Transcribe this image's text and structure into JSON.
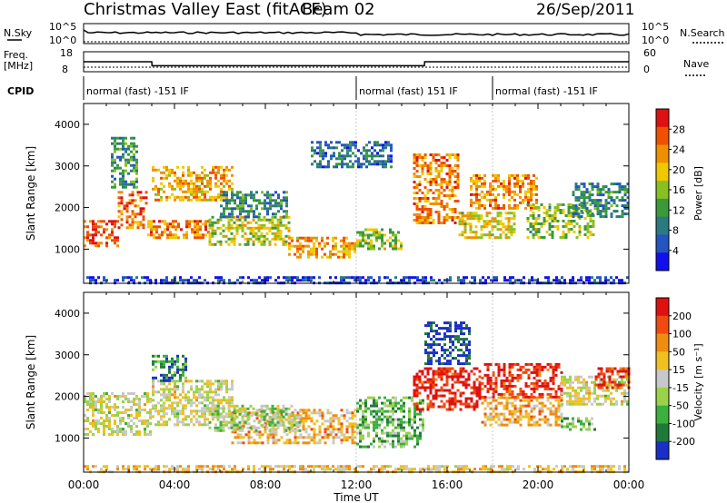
{
  "header": {
    "title": "Christmas Valley East (fitACF)",
    "beam": "Beam 02",
    "date": "26/Sep/2011"
  },
  "status_panel": {
    "nsky_label": "N.Sky",
    "nsky_ticks": [
      "10^5",
      "10^0"
    ],
    "nsearch_label": "N.Search",
    "nsearch_ticks": [
      "10^5",
      "10^0"
    ],
    "freq_label_line1": "Freq.",
    "freq_label_line2": "[MHz]",
    "freq_ticks": [
      "18",
      "8"
    ],
    "nave_label": "Nave",
    "nave_ticks": [
      "60",
      "0"
    ],
    "cpid_label": "CPID",
    "cpid_segments": [
      {
        "text": "normal (fast) -151 IF",
        "start_h": 0,
        "end_h": 12
      },
      {
        "text": "normal (fast) 151 IF",
        "start_h": 12,
        "end_h": 18
      },
      {
        "text": "normal (fast) -151 IF",
        "start_h": 18,
        "end_h": 24
      }
    ],
    "freq_series": [
      {
        "h": 0,
        "mhz": 13
      },
      {
        "h": 3,
        "mhz": 13
      },
      {
        "h": 3.01,
        "mhz": 11
      },
      {
        "h": 15,
        "mhz": 11
      },
      {
        "h": 15.01,
        "mhz": 13
      },
      {
        "h": 24,
        "mhz": 13
      }
    ]
  },
  "chart_data": [
    {
      "type": "heatmap",
      "name": "power",
      "ylabel": "Slant Range [km]",
      "xlabel": "Time UT",
      "x_ticks": [
        "00:00",
        "04:00",
        "08:00",
        "12:00",
        "16:00",
        "20:00",
        "00:00"
      ],
      "xlim_hours": [
        0,
        24
      ],
      "y_ticks": [
        "1000",
        "2000",
        "3000",
        "4000"
      ],
      "ylim_km": [
        180,
        4500
      ],
      "colorbar": {
        "label": "Power [dB]",
        "ticks": [
          "4",
          "8",
          "12",
          "16",
          "20",
          "24",
          "28"
        ],
        "range": [
          0,
          30
        ],
        "colors": [
          "#1010ee",
          "#2255c0",
          "#2a7a80",
          "#3a9a3a",
          "#88c020",
          "#f0c800",
          "#f09000",
          "#f05000",
          "#e01010"
        ]
      },
      "regions": [
        {
          "t0": 0.0,
          "t1": 1.5,
          "r0": 1050,
          "r1": 1700,
          "level": 0.85
        },
        {
          "t0": 1.5,
          "t1": 2.8,
          "r0": 1500,
          "r1": 2400,
          "level": 0.8
        },
        {
          "t0": 1.2,
          "t1": 2.4,
          "r0": 2500,
          "r1": 3700,
          "level": 0.35
        },
        {
          "t0": 2.8,
          "t1": 5.5,
          "r0": 1300,
          "r1": 1700,
          "level": 0.75
        },
        {
          "t0": 3.0,
          "t1": 6.5,
          "r0": 2200,
          "r1": 3000,
          "level": 0.7
        },
        {
          "t0": 5.5,
          "t1": 9.0,
          "r0": 1100,
          "r1": 1800,
          "level": 0.55
        },
        {
          "t0": 9.0,
          "t1": 12.0,
          "r0": 800,
          "r1": 1300,
          "level": 0.7
        },
        {
          "t0": 6.0,
          "t1": 9.0,
          "r0": 1800,
          "r1": 2400,
          "level": 0.3
        },
        {
          "t0": 12.0,
          "t1": 14.0,
          "r0": 1000,
          "r1": 1500,
          "level": 0.5
        },
        {
          "t0": 14.5,
          "t1": 16.5,
          "r0": 1600,
          "r1": 3300,
          "level": 0.75
        },
        {
          "t0": 16.5,
          "t1": 19.0,
          "r0": 1300,
          "r1": 1900,
          "level": 0.6
        },
        {
          "t0": 17.0,
          "t1": 20.0,
          "r0": 2000,
          "r1": 2800,
          "level": 0.75
        },
        {
          "t0": 19.5,
          "t1": 22.5,
          "r0": 1300,
          "r1": 2100,
          "level": 0.5
        },
        {
          "t0": 21.5,
          "t1": 24.0,
          "r0": 1800,
          "r1": 2600,
          "level": 0.3
        },
        {
          "t0": 10.0,
          "t1": 13.5,
          "r0": 3000,
          "r1": 3600,
          "level": 0.25
        },
        {
          "t0": 0.0,
          "t1": 24.0,
          "r0": 180,
          "r1": 350,
          "level": 0.1
        }
      ]
    },
    {
      "type": "heatmap",
      "name": "velocity",
      "ylabel": "Slant Range [km]",
      "xlabel": "Time UT",
      "x_ticks": [
        "00:00",
        "04:00",
        "08:00",
        "12:00",
        "16:00",
        "20:00",
        "00:00"
      ],
      "xlim_hours": [
        0,
        24
      ],
      "y_ticks": [
        "1000",
        "2000",
        "3000",
        "4000"
      ],
      "ylim_km": [
        180,
        4500
      ],
      "colorbar": {
        "label": "Velocity [m s⁻¹]",
        "ticks": [
          "200",
          "100",
          "50",
          "15",
          "-15",
          "-50",
          "-100",
          "-200"
        ],
        "range": [
          -250,
          250
        ],
        "colors": [
          "#1a2ec8",
          "#1f7a3a",
          "#3cb03c",
          "#9ad24a",
          "#c8c8c8",
          "#f0c020",
          "#f08c10",
          "#f04a10",
          "#e01010"
        ]
      },
      "regions": [
        {
          "t0": 0.0,
          "t1": 3.0,
          "r0": 1100,
          "r1": 2100,
          "level": 0.5
        },
        {
          "t0": 3.0,
          "t1": 6.5,
          "r0": 1300,
          "r1": 2400,
          "level": 0.5
        },
        {
          "t0": 3.0,
          "t1": 4.5,
          "r0": 2400,
          "r1": 3000,
          "level": 0.2
        },
        {
          "t0": 6.5,
          "t1": 12.0,
          "r0": 900,
          "r1": 1700,
          "level": 0.65
        },
        {
          "t0": 5.5,
          "t1": 9.5,
          "r0": 1200,
          "r1": 1800,
          "level": 0.42
        },
        {
          "t0": 12.0,
          "t1": 15.0,
          "r0": 800,
          "r1": 2000,
          "level": 0.3
        },
        {
          "t0": 14.5,
          "t1": 17.5,
          "r0": 1700,
          "r1": 2700,
          "level": 0.95
        },
        {
          "t0": 15.0,
          "t1": 17.0,
          "r0": 2800,
          "r1": 3800,
          "level": 0.05
        },
        {
          "t0": 17.5,
          "t1": 21.0,
          "r0": 1300,
          "r1": 2000,
          "level": 0.65
        },
        {
          "t0": 17.5,
          "t1": 21.0,
          "r0": 2000,
          "r1": 2800,
          "level": 0.92
        },
        {
          "t0": 21.0,
          "t1": 24.0,
          "r0": 1800,
          "r1": 2500,
          "level": 0.5
        },
        {
          "t0": 21.0,
          "t1": 22.5,
          "r0": 1200,
          "r1": 1500,
          "level": 0.3
        },
        {
          "t0": 22.5,
          "t1": 24.0,
          "r0": 2200,
          "r1": 2700,
          "level": 0.9
        },
        {
          "t0": 0.0,
          "t1": 24.0,
          "r0": 180,
          "r1": 350,
          "level": 0.6
        }
      ]
    }
  ]
}
